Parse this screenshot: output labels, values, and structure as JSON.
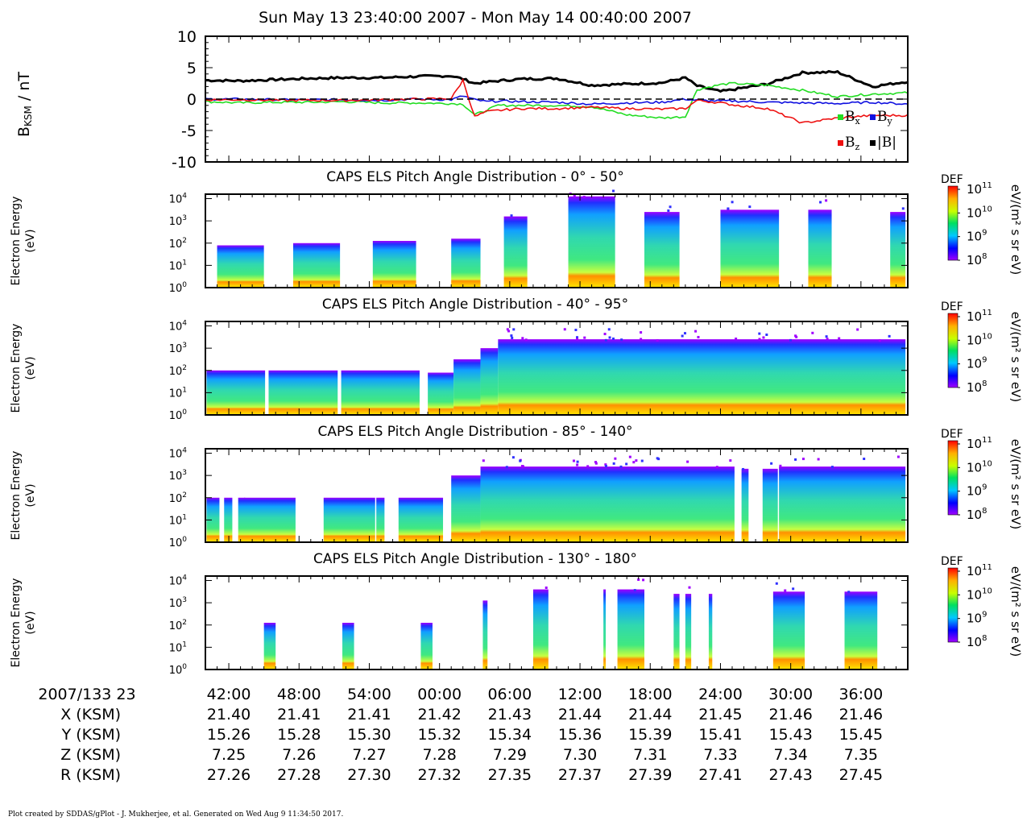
{
  "title": "Sun May 13 23:40:00 2007 - Mon May 14 00:40:00 2007",
  "footer": "Plot created by SDDAS/gPlot - J. Mukherjee, et al.  Generated on Wed Aug 9 11:34:50 2017.",
  "colors": {
    "bx": "#22dd22",
    "by": "#1010e0",
    "bz": "#ee1010",
    "bmag": "#000000"
  },
  "chart_data": [
    {
      "type": "line",
      "ylabel": "BₖₛM / nT",
      "ylabel_main": "B",
      "ylabel_sub": "KSM",
      "ylabel_unit": " / nT",
      "ylim": [
        -10,
        10
      ],
      "yticks": [
        "10",
        "5",
        "0",
        "-5",
        "-10"
      ],
      "legend": [
        {
          "key": "bx",
          "label": "B",
          "sub": "x"
        },
        {
          "key": "by",
          "label": "B",
          "sub": "y"
        },
        {
          "key": "bz",
          "label": "B",
          "sub": "z"
        },
        {
          "key": "bmag",
          "label": "|B|",
          "sub": ""
        }
      ],
      "x_minutes": [
        0,
        3,
        6,
        9,
        12,
        15,
        18,
        21,
        22,
        23,
        24,
        25,
        27,
        30,
        33,
        36,
        39,
        41,
        42,
        44,
        45,
        48,
        51,
        54,
        57,
        60
      ],
      "series": [
        {
          "name": "|B|",
          "key": "bmag",
          "values": [
            3.0,
            2.9,
            3.1,
            3.3,
            3.4,
            3.4,
            3.6,
            3.7,
            3.2,
            2.5,
            2.7,
            2.9,
            3.2,
            3.3,
            2.2,
            2.4,
            2.6,
            3.4,
            2.1,
            1.2,
            1.5,
            2.4,
            4.2,
            4.3,
            2.0,
            2.8
          ]
        },
        {
          "name": "B_x",
          "key": "bx",
          "values": [
            -0.4,
            -0.6,
            -0.5,
            -0.5,
            -0.4,
            -0.6,
            -0.6,
            -0.7,
            -0.8,
            -2.5,
            -1.8,
            -1.0,
            -1.0,
            -1.0,
            -1.2,
            -2.5,
            -3.0,
            -2.8,
            1.5,
            2.3,
            2.5,
            2.2,
            1.4,
            0.4,
            0.8,
            1.0
          ]
        },
        {
          "name": "B_y",
          "key": "by",
          "values": [
            0.0,
            0.0,
            -0.1,
            -0.1,
            -0.1,
            -0.2,
            0.0,
            -0.1,
            0.5,
            -0.1,
            -0.4,
            -0.3,
            -0.4,
            -0.5,
            -0.8,
            -0.6,
            -0.5,
            0.0,
            -0.2,
            -0.3,
            -0.3,
            -0.5,
            -0.6,
            -0.7,
            -0.5,
            -0.8
          ]
        },
        {
          "name": "B_z",
          "key": "bz",
          "values": [
            -0.1,
            -0.1,
            -0.2,
            -0.2,
            -0.2,
            -0.1,
            0.0,
            0.1,
            3.0,
            -2.8,
            -2.0,
            -1.8,
            -1.5,
            -1.5,
            -1.3,
            -1.5,
            -1.6,
            -1.5,
            -0.2,
            -0.6,
            -0.9,
            -1.5,
            -3.8,
            -3.0,
            -2.6,
            -2.6
          ]
        }
      ]
    },
    {
      "type": "heatmap",
      "title": "CAPS ELS Pitch Angle Distribution - 0° - 50°",
      "ylabel": [
        "Electron Energy",
        "(eV)"
      ],
      "yticks": [
        "10",
        "10",
        "10",
        "10",
        "10"
      ],
      "ytick_exps": [
        "4",
        "3",
        "2",
        "1",
        "0"
      ],
      "ylim_log10": [
        0,
        4.2
      ],
      "colorbar": {
        "label": "DEF",
        "unit": "eV/(m² s sr eV)",
        "exps": [
          "11",
          "10",
          "9",
          "8"
        ]
      },
      "blocks": [
        [
          1.0,
          5.0,
          1.9
        ],
        [
          7.5,
          11.5,
          2.0
        ],
        [
          14.3,
          18.0,
          2.1
        ],
        [
          21.0,
          23.5,
          2.2
        ],
        [
          25.5,
          27.5,
          3.2
        ],
        [
          31.0,
          35.0,
          4.1
        ],
        [
          37.5,
          40.5,
          3.4
        ],
        [
          44.0,
          49.0,
          3.5
        ],
        [
          51.5,
          53.5,
          3.5
        ],
        [
          58.5,
          59.8,
          3.4
        ]
      ]
    },
    {
      "type": "heatmap",
      "title": "CAPS ELS Pitch Angle Distribution - 40° - 95°",
      "ylabel": [
        "Electron Energy",
        "(eV)"
      ],
      "yticks": [
        "10",
        "10",
        "10",
        "10",
        "10"
      ],
      "ytick_exps": [
        "4",
        "3",
        "2",
        "1",
        "0"
      ],
      "ylim_log10": [
        0,
        4.2
      ],
      "colorbar": {
        "label": "DEF",
        "unit": "eV/(m² s sr eV)",
        "exps": [
          "11",
          "10",
          "9",
          "8"
        ]
      },
      "blocks": [
        [
          0.1,
          5.1,
          2.0
        ],
        [
          5.4,
          11.3,
          2.0
        ],
        [
          11.6,
          18.3,
          2.0
        ],
        [
          19.0,
          21.2,
          1.9
        ],
        [
          21.2,
          23.5,
          2.5
        ],
        [
          23.5,
          25.0,
          3.0
        ],
        [
          25.0,
          59.8,
          3.4
        ]
      ]
    },
    {
      "type": "heatmap",
      "title": "CAPS ELS Pitch Angle Distribution - 85° - 140°",
      "ylabel": [
        "Electron Energy",
        "(eV)"
      ],
      "yticks": [
        "10",
        "10",
        "10",
        "10",
        "10"
      ],
      "ytick_exps": [
        "4",
        "3",
        "2",
        "1",
        "0"
      ],
      "ylim_log10": [
        0,
        4.2
      ],
      "colorbar": {
        "label": "DEF",
        "unit": "eV/(m² s sr eV)",
        "exps": [
          "11",
          "10",
          "9",
          "8"
        ]
      },
      "blocks": [
        [
          0.1,
          1.2,
          2.0
        ],
        [
          1.6,
          2.3,
          2.0
        ],
        [
          2.8,
          3.4,
          2.0
        ],
        [
          3.3,
          7.7,
          2.0
        ],
        [
          10.1,
          14.5,
          2.0
        ],
        [
          14.6,
          15.3,
          2.0
        ],
        [
          16.5,
          20.3,
          2.0
        ],
        [
          21.0,
          23.5,
          3.0
        ],
        [
          23.5,
          45.2,
          3.4
        ],
        [
          45.8,
          46.4,
          3.3
        ],
        [
          47.6,
          48.9,
          3.3
        ],
        [
          49.0,
          59.8,
          3.4
        ]
      ]
    },
    {
      "type": "heatmap",
      "title": "CAPS ELS Pitch Angle Distribution - 130° - 180°",
      "ylabel": [
        "Electron Energy",
        "(eV)"
      ],
      "yticks": [
        "10",
        "10",
        "10",
        "10",
        "10"
      ],
      "ytick_exps": [
        "4",
        "3",
        "2",
        "1",
        "0"
      ],
      "ylim_log10": [
        0,
        4.2
      ],
      "colorbar": {
        "label": "DEF",
        "unit": "eV/(m² s sr eV)",
        "exps": [
          "11",
          "10",
          "9",
          "8"
        ]
      },
      "blocks": [
        [
          5.0,
          6.0,
          2.1
        ],
        [
          11.7,
          12.7,
          2.1
        ],
        [
          18.4,
          19.4,
          2.1
        ],
        [
          23.7,
          24.1,
          3.1
        ],
        [
          28.0,
          29.3,
          3.6
        ],
        [
          34.0,
          34.2,
          3.6
        ],
        [
          35.2,
          37.5,
          3.6
        ],
        [
          40.0,
          40.5,
          3.4
        ],
        [
          41.0,
          41.5,
          3.4
        ],
        [
          43.0,
          43.3,
          3.4
        ],
        [
          48.5,
          51.2,
          3.5
        ],
        [
          54.6,
          57.4,
          3.5
        ]
      ]
    }
  ],
  "ephemeris": {
    "rows": [
      {
        "label": "2007/133 23",
        "values": [
          "42:00",
          "48:00",
          "54:00",
          "00:00",
          "06:00",
          "12:00",
          "18:00",
          "24:00",
          "30:00",
          "36:00"
        ]
      },
      {
        "label": "X (KSM)",
        "values": [
          "21.40",
          "21.41",
          "21.41",
          "21.42",
          "21.43",
          "21.44",
          "21.44",
          "21.45",
          "21.46",
          "21.46"
        ]
      },
      {
        "label": "Y (KSM)",
        "values": [
          "15.26",
          "15.28",
          "15.30",
          "15.32",
          "15.34",
          "15.36",
          "15.39",
          "15.41",
          "15.43",
          "15.45"
        ]
      },
      {
        "label": "Z (KSM)",
        "values": [
          "7.25",
          "7.26",
          "7.27",
          "7.28",
          "7.29",
          "7.30",
          "7.31",
          "7.33",
          "7.34",
          "7.35"
        ]
      },
      {
        "label": "R (KSM)",
        "values": [
          "27.26",
          "27.28",
          "27.30",
          "27.32",
          "27.35",
          "27.37",
          "27.39",
          "27.41",
          "27.43",
          "27.45"
        ]
      }
    ],
    "tick_minutes": [
      2,
      8,
      14,
      20,
      26,
      32,
      38,
      44,
      50,
      56
    ]
  }
}
